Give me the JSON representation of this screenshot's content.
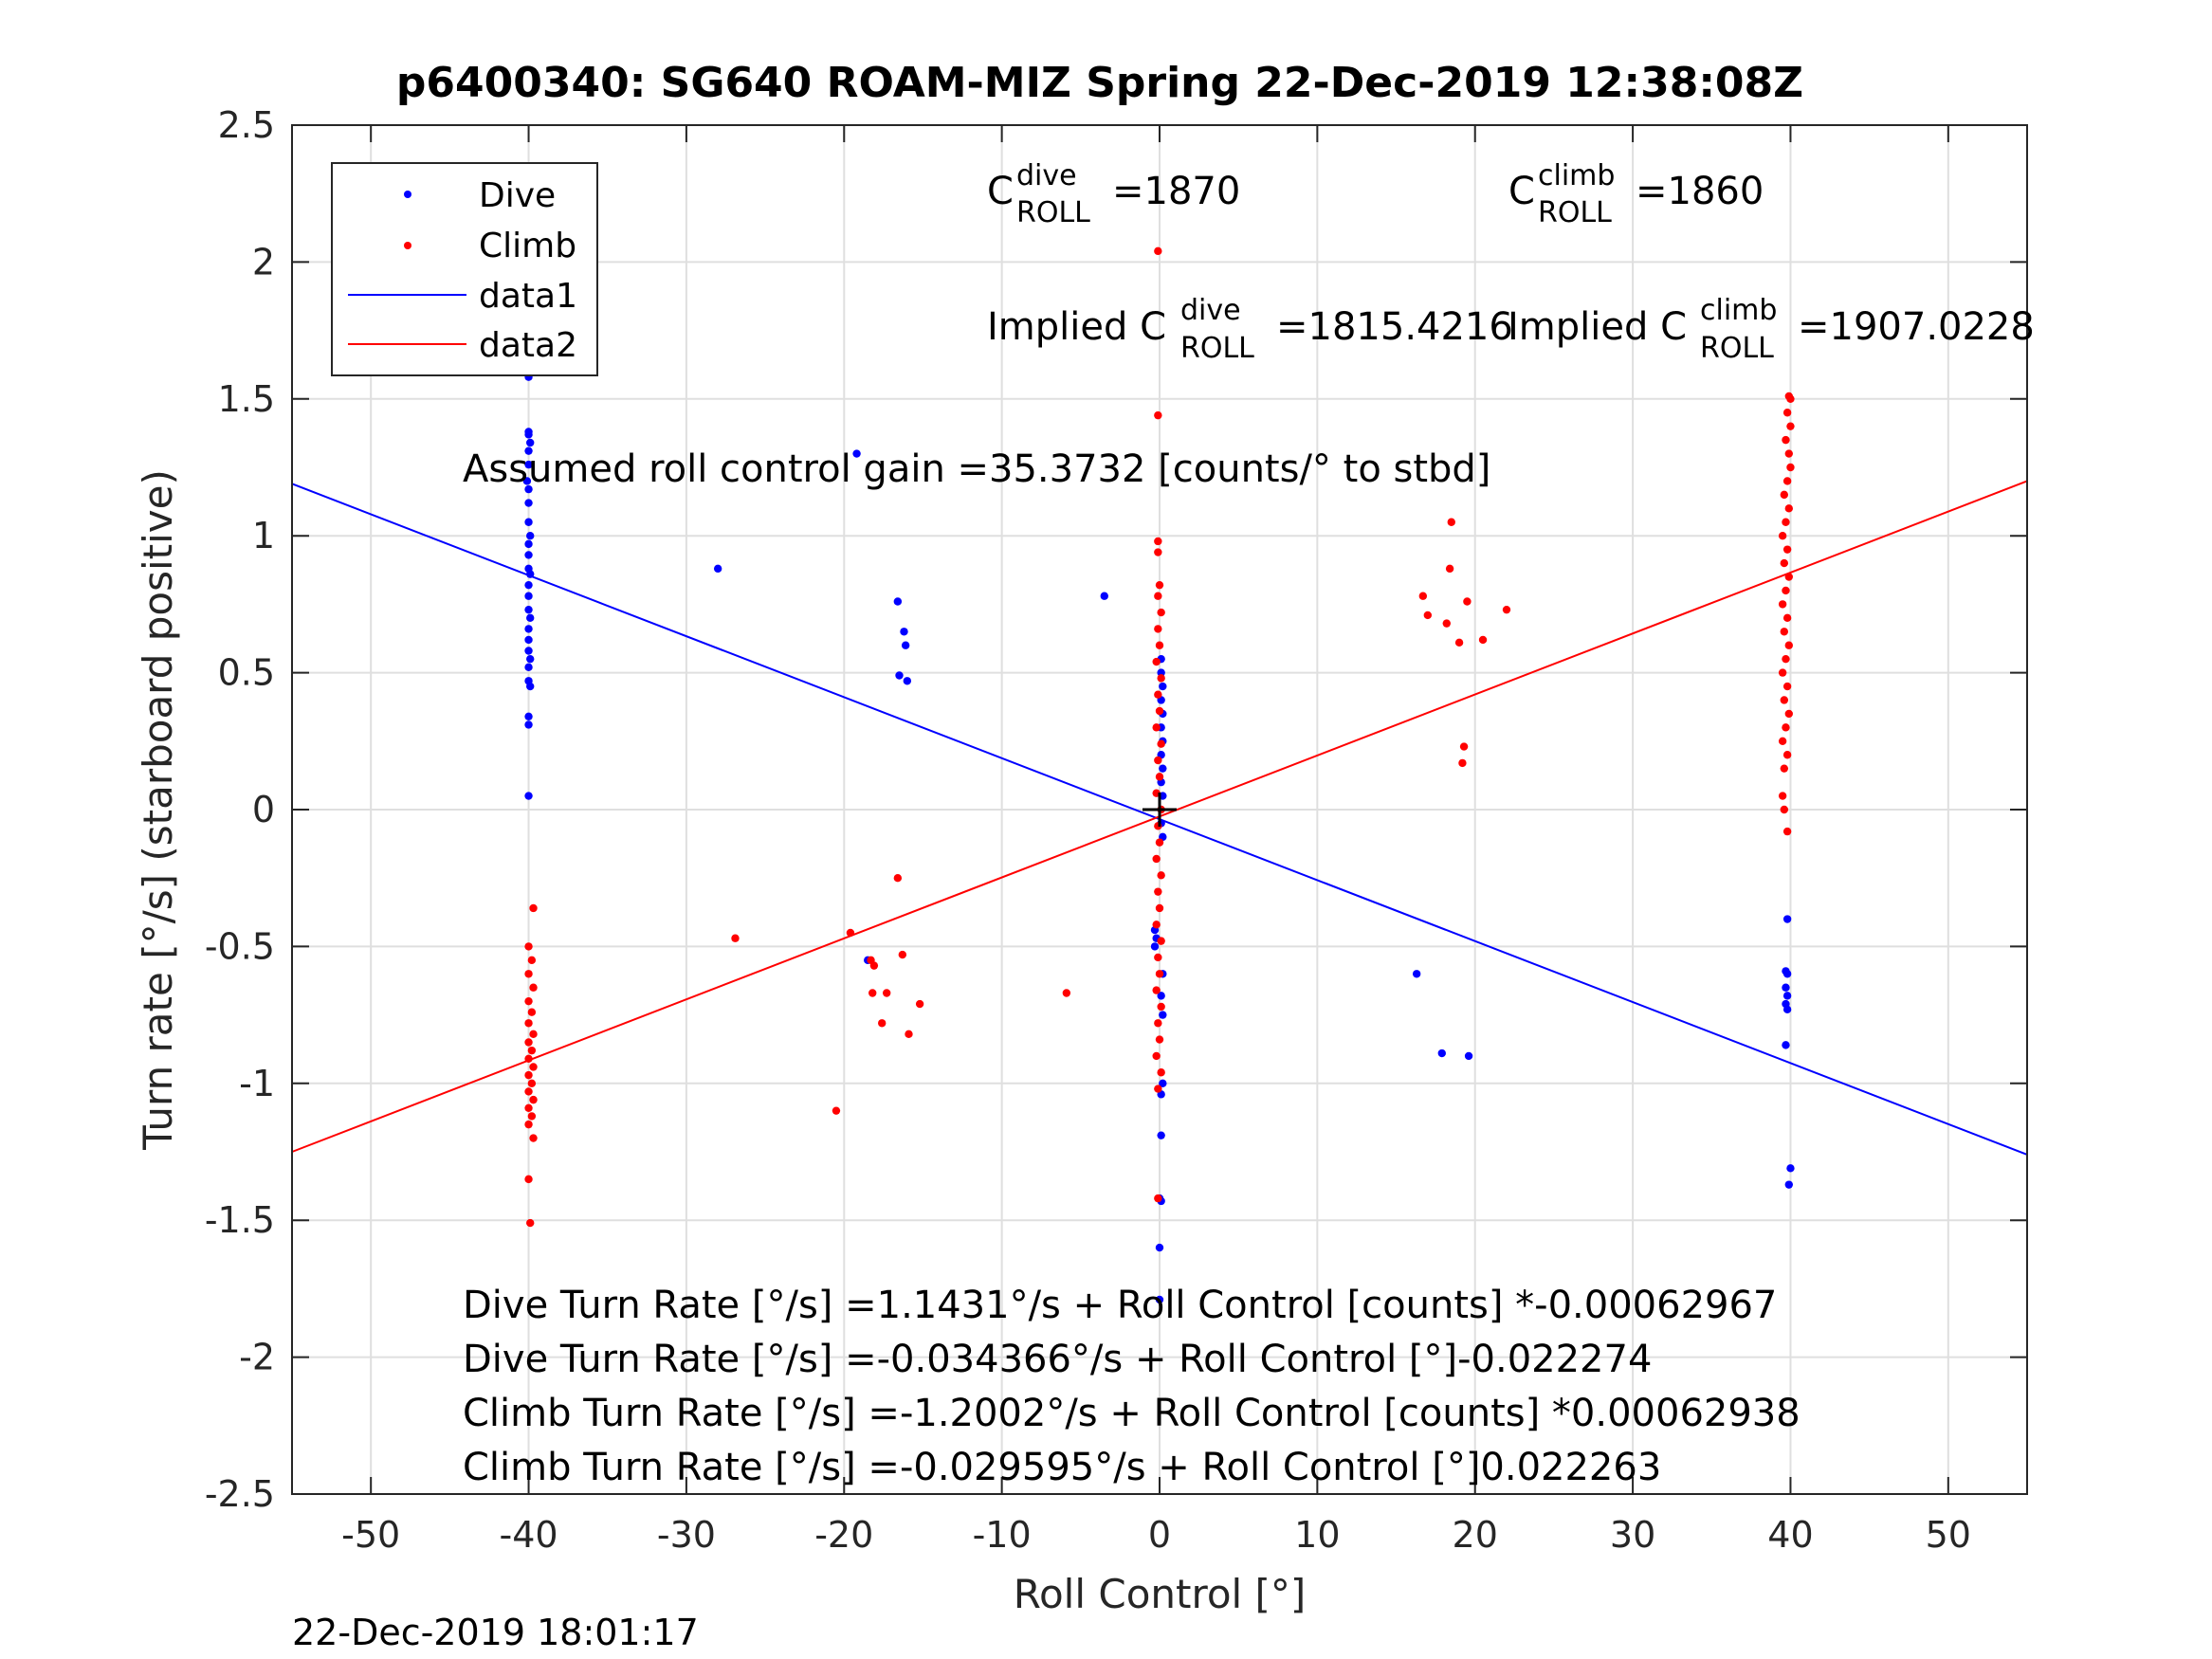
{
  "chart_data": {
    "type": "scatter",
    "title": "p6400340: SG640 ROAM-MIZ Spring 22-Dec-2019 12:38:08Z",
    "xlabel": "Roll Control [°]",
    "ylabel": "Turn rate [°/s] (starboard positive)",
    "xlim": [
      -55,
      55
    ],
    "ylim": [
      -2.5,
      2.5
    ],
    "xticks": [
      -50,
      -40,
      -30,
      -20,
      -10,
      0,
      10,
      20,
      30,
      40,
      50
    ],
    "xtick_labels": [
      "-50",
      "-40",
      "-30",
      "-20",
      "-10",
      "0",
      "10",
      "20",
      "30",
      "40",
      "50"
    ],
    "yticks": [
      2.5,
      2,
      1.5,
      1,
      0.5,
      0,
      -0.5,
      -1,
      -1.5,
      -2,
      -2.5
    ],
    "ytick_labels": [
      "2.5",
      "2",
      "1.5",
      "1",
      "0.5",
      "0",
      "-0.5",
      "-1",
      "-1.5",
      "-2",
      "-2.5"
    ],
    "grid": true,
    "legend_position": "top-left",
    "legend": [
      "Dive",
      "Climb",
      "data1",
      "data2"
    ],
    "colors": {
      "dive": "#0000ff",
      "climb": "#ff0000",
      "origin_marker": "#000000"
    },
    "series": [
      {
        "name": "Dive",
        "kind": "points",
        "color": "#0000ff",
        "points": [
          [
            -40,
            1.85
          ],
          [
            -40,
            1.58
          ],
          [
            -40,
            1.38
          ],
          [
            -40,
            1.37
          ],
          [
            -39.9,
            1.34
          ],
          [
            -40,
            1.31
          ],
          [
            -40,
            1.26
          ],
          [
            -40.1,
            1.2
          ],
          [
            -40,
            1.17
          ],
          [
            -40,
            1.12
          ],
          [
            -40,
            1.05
          ],
          [
            -39.9,
            1.0
          ],
          [
            -40,
            0.97
          ],
          [
            -40,
            0.93
          ],
          [
            -40,
            0.88
          ],
          [
            -39.9,
            0.86
          ],
          [
            -40,
            0.82
          ],
          [
            -40,
            0.78
          ],
          [
            -40,
            0.73
          ],
          [
            -39.9,
            0.7
          ],
          [
            -40,
            0.66
          ],
          [
            -40,
            0.62
          ],
          [
            -40,
            0.58
          ],
          [
            -39.9,
            0.55
          ],
          [
            -40,
            0.52
          ],
          [
            -40,
            0.47
          ],
          [
            -39.9,
            0.45
          ],
          [
            -40,
            0.34
          ],
          [
            -40,
            0.31
          ],
          [
            -40,
            0.05
          ],
          [
            -19.2,
            1.3
          ],
          [
            -28,
            0.88
          ],
          [
            -16.6,
            0.76
          ],
          [
            -16.2,
            0.65
          ],
          [
            -16.1,
            0.6
          ],
          [
            -16.5,
            0.49
          ],
          [
            -16,
            0.47
          ],
          [
            -3.5,
            0.78
          ],
          [
            -18.5,
            -0.55
          ],
          [
            0.1,
            0.55
          ],
          [
            0.1,
            0.5
          ],
          [
            0.2,
            0.45
          ],
          [
            0.1,
            0.4
          ],
          [
            0.2,
            0.35
          ],
          [
            0.1,
            0.3
          ],
          [
            0.2,
            0.25
          ],
          [
            0.1,
            0.2
          ],
          [
            0.2,
            0.15
          ],
          [
            0.1,
            0.1
          ],
          [
            0.2,
            0.05
          ],
          [
            0.1,
            -0.05
          ],
          [
            0.2,
            -0.1
          ],
          [
            -0.3,
            -0.44
          ],
          [
            -0.2,
            -0.47
          ],
          [
            -0.3,
            -0.5
          ],
          [
            0.2,
            -0.6
          ],
          [
            0.1,
            -0.68
          ],
          [
            0.2,
            -0.75
          ],
          [
            0.2,
            -1.0
          ],
          [
            0.1,
            -1.04
          ],
          [
            0.1,
            -1.19
          ],
          [
            0.0,
            -1.42
          ],
          [
            0.1,
            -1.43
          ],
          [
            0.0,
            -1.6
          ],
          [
            0.0,
            -1.79
          ],
          [
            16.3,
            -0.6
          ],
          [
            17.9,
            -0.89
          ],
          [
            19.6,
            -0.9
          ],
          [
            39.8,
            -0.4
          ],
          [
            39.7,
            -0.59
          ],
          [
            39.8,
            -0.6
          ],
          [
            39.7,
            -0.65
          ],
          [
            39.8,
            -0.68
          ],
          [
            39.7,
            -0.71
          ],
          [
            39.8,
            -0.73
          ],
          [
            39.7,
            -0.86
          ],
          [
            40,
            -1.31
          ],
          [
            39.9,
            -1.37
          ]
        ]
      },
      {
        "name": "Climb",
        "kind": "points",
        "color": "#ff0000",
        "points": [
          [
            -39.7,
            -0.36
          ],
          [
            -40,
            -0.5
          ],
          [
            -39.8,
            -0.55
          ],
          [
            -40,
            -0.6
          ],
          [
            -39.7,
            -0.65
          ],
          [
            -40,
            -0.7
          ],
          [
            -39.8,
            -0.74
          ],
          [
            -40,
            -0.78
          ],
          [
            -39.7,
            -0.82
          ],
          [
            -40,
            -0.85
          ],
          [
            -39.8,
            -0.88
          ],
          [
            -40,
            -0.91
          ],
          [
            -39.7,
            -0.94
          ],
          [
            -40,
            -0.97
          ],
          [
            -39.8,
            -1.0
          ],
          [
            -40,
            -1.03
          ],
          [
            -39.7,
            -1.06
          ],
          [
            -40,
            -1.09
          ],
          [
            -39.8,
            -1.12
          ],
          [
            -40,
            -1.15
          ],
          [
            -39.7,
            -1.2
          ],
          [
            -40,
            -1.35
          ],
          [
            -39.9,
            -1.51
          ],
          [
            -26.9,
            -0.47
          ],
          [
            -19.6,
            -0.45
          ],
          [
            -16.6,
            -0.25
          ],
          [
            -16.3,
            -0.53
          ],
          [
            -18.3,
            -0.55
          ],
          [
            -18.1,
            -0.57
          ],
          [
            -18.2,
            -0.67
          ],
          [
            -17.3,
            -0.67
          ],
          [
            -15.2,
            -0.71
          ],
          [
            -17.6,
            -0.78
          ],
          [
            -15.9,
            -0.82
          ],
          [
            -20.5,
            -1.1
          ],
          [
            -5.9,
            -0.67
          ],
          [
            -0.1,
            2.04
          ],
          [
            -0.1,
            1.44
          ],
          [
            -0.1,
            0.98
          ],
          [
            -0.1,
            0.94
          ],
          [
            0,
            0.82
          ],
          [
            -0.1,
            0.78
          ],
          [
            0.1,
            0.72
          ],
          [
            -0.1,
            0.66
          ],
          [
            0,
            0.6
          ],
          [
            -0.2,
            0.54
          ],
          [
            0.1,
            0.48
          ],
          [
            -0.1,
            0.42
          ],
          [
            0,
            0.36
          ],
          [
            -0.2,
            0.3
          ],
          [
            0.1,
            0.24
          ],
          [
            -0.1,
            0.18
          ],
          [
            0,
            0.12
          ],
          [
            -0.2,
            0.06
          ],
          [
            0.1,
            0.0
          ],
          [
            -0.1,
            -0.06
          ],
          [
            0,
            -0.12
          ],
          [
            -0.2,
            -0.18
          ],
          [
            0.1,
            -0.24
          ],
          [
            -0.1,
            -0.3
          ],
          [
            0,
            -0.36
          ],
          [
            -0.2,
            -0.42
          ],
          [
            0.1,
            -0.48
          ],
          [
            -0.1,
            -0.54
          ],
          [
            0,
            -0.6
          ],
          [
            -0.2,
            -0.66
          ],
          [
            0.1,
            -0.72
          ],
          [
            -0.1,
            -0.78
          ],
          [
            0,
            -0.84
          ],
          [
            -0.2,
            -0.9
          ],
          [
            0.1,
            -0.96
          ],
          [
            -0.1,
            -1.02
          ],
          [
            -0.1,
            -1.42
          ],
          [
            16.7,
            0.78
          ],
          [
            17,
            0.71
          ],
          [
            18.5,
            1.05
          ],
          [
            18.4,
            0.88
          ],
          [
            19.5,
            0.76
          ],
          [
            18.2,
            0.68
          ],
          [
            19,
            0.61
          ],
          [
            20.5,
            0.62
          ],
          [
            22,
            0.73
          ],
          [
            19.3,
            0.23
          ],
          [
            19.2,
            0.17
          ],
          [
            39.9,
            1.51
          ],
          [
            40,
            1.5
          ],
          [
            39.8,
            1.45
          ],
          [
            40,
            1.4
          ],
          [
            39.7,
            1.35
          ],
          [
            39.9,
            1.3
          ],
          [
            40,
            1.25
          ],
          [
            39.8,
            1.2
          ],
          [
            39.6,
            1.15
          ],
          [
            39.9,
            1.1
          ],
          [
            39.7,
            1.05
          ],
          [
            39.5,
            1.0
          ],
          [
            39.8,
            0.95
          ],
          [
            39.6,
            0.9
          ],
          [
            39.9,
            0.85
          ],
          [
            39.7,
            0.8
          ],
          [
            39.5,
            0.75
          ],
          [
            39.8,
            0.7
          ],
          [
            39.6,
            0.65
          ],
          [
            39.9,
            0.6
          ],
          [
            39.7,
            0.55
          ],
          [
            39.5,
            0.5
          ],
          [
            39.8,
            0.45
          ],
          [
            39.6,
            0.4
          ],
          [
            39.9,
            0.35
          ],
          [
            39.7,
            0.3
          ],
          [
            39.5,
            0.25
          ],
          [
            39.8,
            0.2
          ],
          [
            39.6,
            0.15
          ],
          [
            39.5,
            0.05
          ],
          [
            39.6,
            0.0
          ],
          [
            39.8,
            -0.08
          ]
        ]
      },
      {
        "name": "data1",
        "kind": "line",
        "color": "#0000ff",
        "x": [
          -55,
          55
        ],
        "y": [
          1.19,
          -1.26
        ]
      },
      {
        "name": "data2",
        "kind": "line",
        "color": "#ff0000",
        "x": [
          -55,
          55
        ],
        "y": [
          -1.25,
          1.2
        ]
      }
    ],
    "annotations": {
      "c_dive": {
        "base": "C",
        "sup": "dive",
        "sub": "ROLL",
        "value": "=1870"
      },
      "c_climb": {
        "base": "C",
        "sup": "climb",
        "sub": "ROLL",
        "value": "=1860"
      },
      "implied_dive": {
        "base": "Implied C",
        "sup": "dive",
        "sub": "ROLL",
        "value": "=1815.4216"
      },
      "implied_climb": {
        "base": "Implied C",
        "sup": "climb",
        "sub": "ROLL",
        "value": "=1907.0228"
      },
      "gain": "Assumed roll control gain =35.3732 [counts/° to stbd]",
      "eq1": "Dive Turn Rate [°/s] =1.1431°/s + Roll Control [counts] *-0.00062967",
      "eq2": "Dive Turn Rate [°/s] =-0.034366°/s + Roll Control [°]-0.022274",
      "eq3": "Climb Turn Rate [°/s] =-1.2002°/s + Roll Control [counts] *0.00062938",
      "eq4": "Climb Turn Rate [°/s] =-0.029595°/s + Roll Control [°]0.022263"
    },
    "timestamp": "22-Dec-2019 18:01:17"
  }
}
